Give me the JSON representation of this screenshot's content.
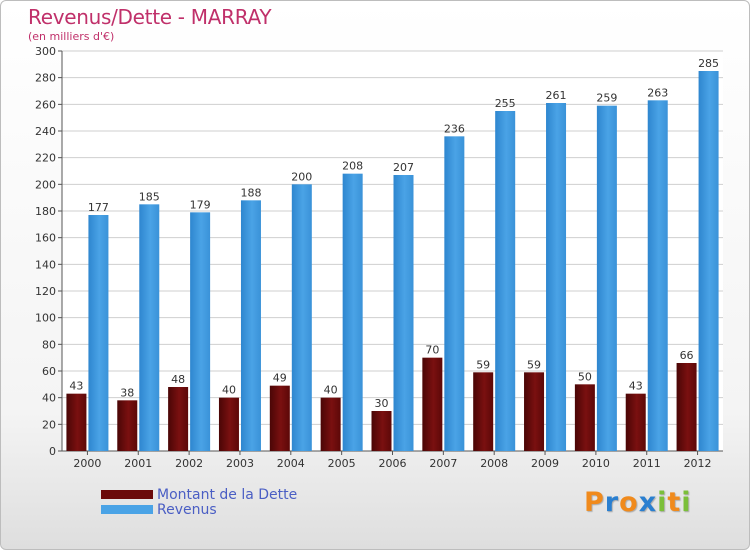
{
  "title": "Revenus/Dette - MARRAY",
  "subtitle": "(en milliers d'€)",
  "colors": {
    "dette": "#7a1010",
    "revenus": "#4aa3e6",
    "title": "#c0306a",
    "legend_text": "#4a5ec4"
  },
  "legend": [
    {
      "label": "Montant de la Dette",
      "color": "#6b0a0a"
    },
    {
      "label": "Revenus",
      "color": "#4aa3e6"
    }
  ],
  "logo": {
    "letters": [
      "P",
      "r",
      "o",
      "x",
      "i",
      "t",
      "i"
    ],
    "colors": [
      "#f08a1c",
      "#2a7fd0",
      "#f08a1c",
      "#2a7fd0",
      "#7bbf3a",
      "#f08a1c",
      "#7bbf3a"
    ]
  },
  "chart_data": {
    "type": "bar",
    "categories": [
      "2000",
      "2001",
      "2002",
      "2003",
      "2004",
      "2005",
      "2006",
      "2007",
      "2008",
      "2009",
      "2010",
      "2011",
      "2012"
    ],
    "series": [
      {
        "name": "Montant de la Dette",
        "values": [
          43,
          38,
          48,
          40,
          49,
          40,
          30,
          70,
          59,
          59,
          50,
          43,
          66
        ]
      },
      {
        "name": "Revenus",
        "values": [
          177,
          185,
          179,
          188,
          200,
          208,
          207,
          236,
          255,
          261,
          259,
          263,
          285
        ]
      }
    ],
    "yticks": [
      0,
      20,
      40,
      60,
      80,
      100,
      120,
      140,
      160,
      180,
      200,
      220,
      240,
      260,
      280,
      300
    ],
    "ylim": [
      0,
      300
    ],
    "grid": true,
    "legend_position": "bottom-left"
  }
}
